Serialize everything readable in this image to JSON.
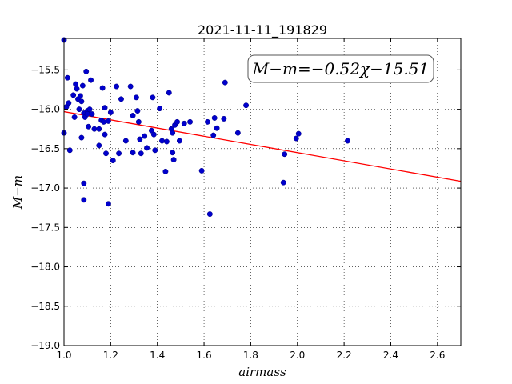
{
  "chart_data": {
    "type": "scatter",
    "title": "2021-11-11_191829",
    "xlabel": "airmass",
    "ylabel": "M−m",
    "annotation": "M−m=−0.52χ−15.51",
    "xlim": [
      1.0,
      2.7
    ],
    "ylim": [
      -19.0,
      -15.1
    ],
    "y_inverted": false,
    "grid": true,
    "grid_style": "dotted",
    "legend": "none",
    "xticks": [
      1.0,
      1.2,
      1.4,
      1.6,
      1.8,
      2.0,
      2.2,
      2.4,
      2.6
    ],
    "xtick_labels": [
      "1.0",
      "1.2",
      "1.4",
      "1.6",
      "1.8",
      "2.0",
      "2.2",
      "2.4",
      "2.6"
    ],
    "yticks": [
      -15.5,
      -16.0,
      -16.5,
      -17.0,
      -17.5,
      -18.0,
      -18.5,
      -19.0
    ],
    "ytick_labels": [
      "−15.5",
      "−16.0",
      "−16.5",
      "−17.0",
      "−17.5",
      "−18.0",
      "−18.5",
      "−19.0"
    ],
    "fit": {
      "slope": -0.52,
      "intercept": -15.51,
      "color": "#ff0000"
    },
    "marker_color": "#0000cc",
    "series": [
      {
        "points": [
          [
            1.0,
            -15.12
          ],
          [
            1.0,
            -16.3
          ],
          [
            1.015,
            -15.6
          ],
          [
            1.01,
            -15.97
          ],
          [
            1.02,
            -15.92
          ],
          [
            1.025,
            -16.52
          ],
          [
            1.04,
            -15.82
          ],
          [
            1.045,
            -16.1
          ],
          [
            1.05,
            -15.68
          ],
          [
            1.055,
            -15.74
          ],
          [
            1.06,
            -15.87
          ],
          [
            1.065,
            -16.0
          ],
          [
            1.07,
            -15.83
          ],
          [
            1.075,
            -15.9
          ],
          [
            1.075,
            -16.36
          ],
          [
            1.08,
            -15.7
          ],
          [
            1.085,
            -16.05
          ],
          [
            1.09,
            -16.1
          ],
          [
            1.085,
            -16.94
          ],
          [
            1.085,
            -17.15
          ],
          [
            1.095,
            -15.52
          ],
          [
            1.1,
            -16.02
          ],
          [
            1.1,
            -16.06
          ],
          [
            1.105,
            -16.22
          ],
          [
            1.11,
            -16.0
          ],
          [
            1.115,
            -15.63
          ],
          [
            1.12,
            -16.06
          ],
          [
            1.13,
            -16.25
          ],
          [
            1.15,
            -16.25
          ],
          [
            1.15,
            -16.46
          ],
          [
            1.16,
            -16.14
          ],
          [
            1.165,
            -15.73
          ],
          [
            1.17,
            -16.16
          ],
          [
            1.175,
            -15.98
          ],
          [
            1.175,
            -16.32
          ],
          [
            1.18,
            -16.56
          ],
          [
            1.19,
            -16.15
          ],
          [
            1.19,
            -17.2
          ],
          [
            1.2,
            -16.04
          ],
          [
            1.21,
            -16.65
          ],
          [
            1.225,
            -15.71
          ],
          [
            1.235,
            -16.56
          ],
          [
            1.245,
            -15.87
          ],
          [
            1.265,
            -16.4
          ],
          [
            1.285,
            -15.71
          ],
          [
            1.295,
            -16.08
          ],
          [
            1.295,
            -16.55
          ],
          [
            1.31,
            -15.85
          ],
          [
            1.315,
            -16.02
          ],
          [
            1.32,
            -16.16
          ],
          [
            1.325,
            -16.38
          ],
          [
            1.33,
            -16.56
          ],
          [
            1.345,
            -16.34
          ],
          [
            1.355,
            -16.49
          ],
          [
            1.375,
            -16.27
          ],
          [
            1.38,
            -15.85
          ],
          [
            1.385,
            -16.32
          ],
          [
            1.39,
            -16.52
          ],
          [
            1.41,
            -15.99
          ],
          [
            1.42,
            -16.4
          ],
          [
            1.435,
            -16.79
          ],
          [
            1.44,
            -16.41
          ],
          [
            1.45,
            -15.79
          ],
          [
            1.46,
            -16.25
          ],
          [
            1.465,
            -16.3
          ],
          [
            1.465,
            -16.55
          ],
          [
            1.47,
            -16.64
          ],
          [
            1.475,
            -16.2
          ],
          [
            1.485,
            -16.16
          ],
          [
            1.495,
            -16.4
          ],
          [
            1.515,
            -16.18
          ],
          [
            1.54,
            -16.16
          ],
          [
            1.59,
            -16.78
          ],
          [
            1.615,
            -16.16
          ],
          [
            1.625,
            -17.33
          ],
          [
            1.64,
            -16.33
          ],
          [
            1.645,
            -16.11
          ],
          [
            1.655,
            -16.24
          ],
          [
            1.685,
            -16.12
          ],
          [
            1.69,
            -15.66
          ],
          [
            1.745,
            -16.3
          ],
          [
            1.78,
            -15.95
          ],
          [
            1.94,
            -16.93
          ],
          [
            1.945,
            -16.57
          ],
          [
            1.995,
            -16.37
          ],
          [
            2.005,
            -16.31
          ],
          [
            2.215,
            -16.4
          ]
        ]
      }
    ]
  }
}
